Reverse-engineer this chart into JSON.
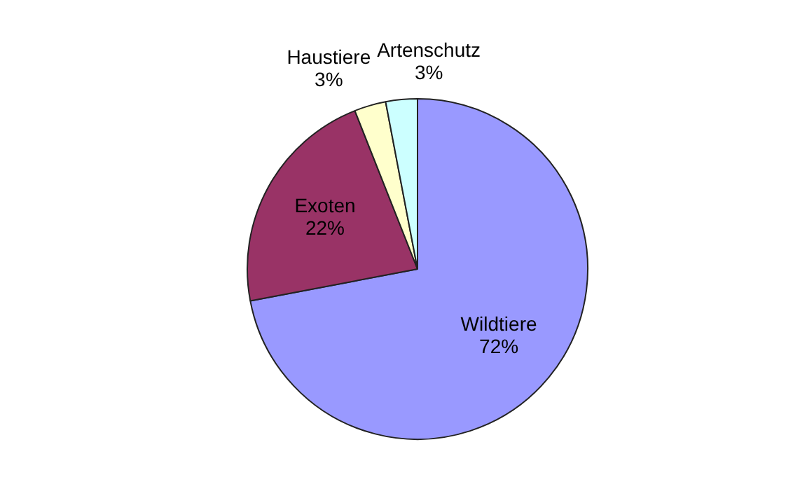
{
  "chart_data": {
    "type": "pie",
    "categories": [
      "Wildtiere",
      "Exoten",
      "Haustiere",
      "Artenschutz"
    ],
    "values": [
      72,
      22,
      3,
      3
    ],
    "colors": [
      "#9999ff",
      "#993366",
      "#ffffcc",
      "#ccffff"
    ],
    "value_labels": [
      "72%",
      "22%",
      "3%",
      "3%"
    ],
    "legend": false
  }
}
